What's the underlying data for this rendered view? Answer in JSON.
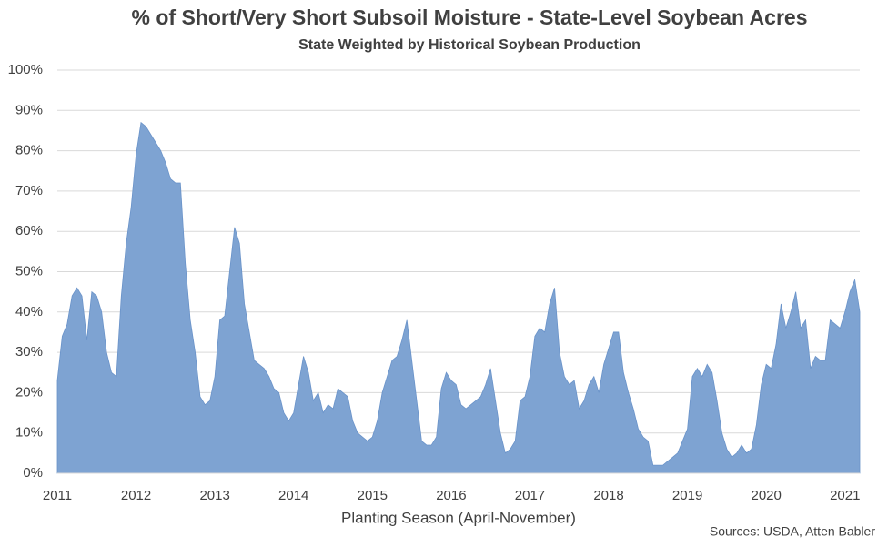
{
  "chart_data": {
    "type": "area",
    "title": "% of Short/Very Short Subsoil Moisture - State-Level Soybean Acres",
    "subtitle": "State Weighted by Historical Soybean Production",
    "x_label": "Planting Season (April-November)",
    "source": "Sources: USDA, Atten Babler",
    "color": "#7ea3d2",
    "grid": true,
    "categories": [
      "2011",
      null,
      null,
      null,
      null,
      null,
      null,
      null,
      null,
      null,
      null,
      null,
      null,
      null,
      null,
      null,
      "2012",
      null,
      null,
      null,
      null,
      null,
      null,
      null,
      null,
      null,
      null,
      null,
      null,
      null,
      null,
      null,
      "2013",
      null,
      null,
      null,
      null,
      null,
      null,
      null,
      null,
      null,
      null,
      null,
      null,
      null,
      null,
      null,
      "2014",
      null,
      null,
      null,
      null,
      null,
      null,
      null,
      null,
      null,
      null,
      null,
      null,
      null,
      null,
      null,
      "2015",
      null,
      null,
      null,
      null,
      null,
      null,
      null,
      null,
      null,
      null,
      null,
      null,
      null,
      null,
      null,
      "2016",
      null,
      null,
      null,
      null,
      null,
      null,
      null,
      null,
      null,
      null,
      null,
      null,
      null,
      null,
      null,
      "2017",
      null,
      null,
      null,
      null,
      null,
      null,
      null,
      null,
      null,
      null,
      null,
      null,
      null,
      null,
      null,
      "2018",
      null,
      null,
      null,
      null,
      null,
      null,
      null,
      null,
      null,
      null,
      null,
      null,
      null,
      null,
      null,
      "2019",
      null,
      null,
      null,
      null,
      null,
      null,
      null,
      null,
      null,
      null,
      null,
      null,
      null,
      null,
      null,
      "2020",
      null,
      null,
      null,
      null,
      null,
      null,
      null,
      null,
      null,
      null,
      null,
      null,
      null,
      null,
      null,
      "2021",
      null,
      null,
      null
    ],
    "values": [
      23,
      34,
      37,
      44,
      46,
      44,
      33,
      45,
      44,
      40,
      30,
      25,
      24,
      44,
      57,
      66,
      79,
      87,
      86,
      84,
      82,
      80,
      77,
      73,
      72,
      72,
      52,
      38,
      30,
      19,
      17,
      18,
      24,
      38,
      39,
      50,
      61,
      57,
      42,
      35,
      28,
      27,
      26,
      24,
      21,
      20,
      15,
      13,
      15,
      22,
      29,
      25,
      18,
      20,
      15,
      17,
      16,
      21,
      20,
      19,
      13,
      10,
      9,
      8,
      9,
      13,
      20,
      24,
      28,
      29,
      33,
      38,
      28,
      18,
      8,
      7,
      7,
      9,
      21,
      25,
      23,
      22,
      17,
      16,
      17,
      18,
      19,
      22,
      26,
      18,
      10,
      5,
      6,
      8,
      18,
      19,
      24,
      34,
      36,
      35,
      42,
      46,
      30,
      24,
      22,
      23,
      16,
      18,
      22,
      24,
      20,
      27,
      31,
      35,
      35,
      25,
      20,
      16,
      11,
      9,
      8,
      2,
      2,
      2,
      3,
      4,
      5,
      8,
      11,
      24,
      26,
      24,
      27,
      25,
      18,
      10,
      6,
      4,
      5,
      7,
      5,
      6,
      12,
      22,
      27,
      26,
      32,
      42,
      36,
      40,
      45,
      36,
      38,
      26,
      29,
      28,
      28,
      38,
      37,
      36,
      40,
      45,
      48,
      40
    ],
    "ylim": [
      0,
      100
    ],
    "yticks": [
      {
        "value": 0,
        "label": "0%"
      },
      {
        "value": 10,
        "label": "10%"
      },
      {
        "value": 20,
        "label": "20%"
      },
      {
        "value": 30,
        "label": "30%"
      },
      {
        "value": 40,
        "label": "40%"
      },
      {
        "value": 50,
        "label": "50%"
      },
      {
        "value": 60,
        "label": "60%"
      },
      {
        "value": 70,
        "label": "70%"
      },
      {
        "value": 80,
        "label": "80%"
      },
      {
        "value": 90,
        "label": "90%"
      },
      {
        "value": 100,
        "label": "100%"
      }
    ]
  }
}
